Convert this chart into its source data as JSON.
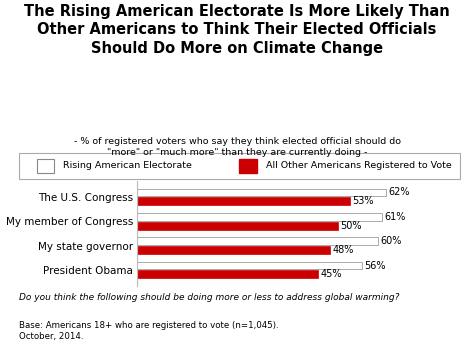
{
  "title": "The Rising American Electorate Is More Likely Than\nOther Americans to Think Their Elected Officials\nShould Do More on Climate Change",
  "subtitle": "- % of registered voters who say they think elected official should do\n\"more\" or \"much more\" than they are currently doing -",
  "categories": [
    "The U.S. Congress",
    "My member of Congress",
    "My state governor",
    "President Obama"
  ],
  "rising_values": [
    62,
    61,
    60,
    56
  ],
  "other_values": [
    53,
    50,
    48,
    45
  ],
  "rising_color": "#ffffff",
  "rising_edge_color": "#aaaaaa",
  "other_color": "#cc0000",
  "bar_height": 0.32,
  "xlim": [
    0,
    72
  ],
  "legend_label_rising": "Rising American Electorate",
  "legend_label_other": "All Other Americans Registered to Vote",
  "footnote_question": "Do you think the following should be doing more or less to address global warming?",
  "footnote_base": "Base: Americans 18+ who are registered to vote (n=1,045).\nOctober, 2014.",
  "bg_color": "#ffffff",
  "title_fontsize": 10.5,
  "subtitle_fontsize": 6.8,
  "label_fontsize": 7.5,
  "value_fontsize": 7,
  "legend_fontsize": 6.8,
  "footnote_fontsize": 6.2,
  "footnote_q_fontsize": 6.5
}
